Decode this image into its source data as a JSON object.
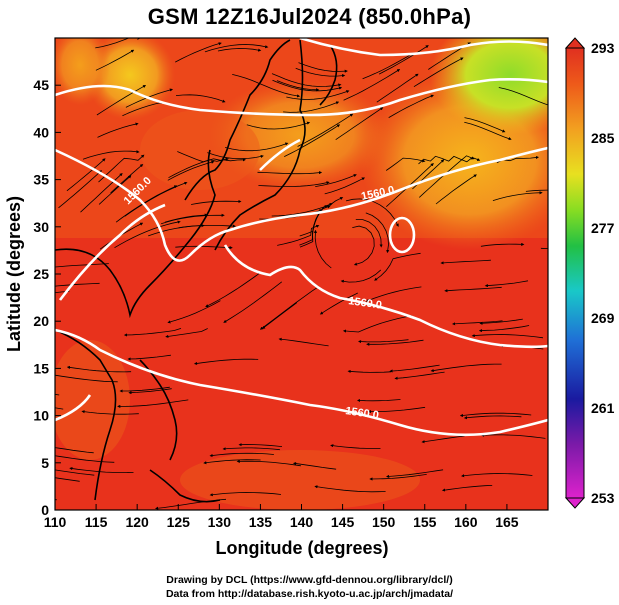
{
  "title": "GSM 12Z16Jul2024 (850.0hPa)",
  "x_axis": {
    "label": "Longitude (degrees)",
    "ticks": [
      "110",
      "115",
      "120",
      "125",
      "130",
      "135",
      "140",
      "145",
      "150",
      "155",
      "160",
      "165"
    ],
    "range": [
      110,
      170
    ]
  },
  "y_axis": {
    "label": "Latitude  (degrees)",
    "ticks": [
      "0",
      "5",
      "10",
      "15",
      "20",
      "25",
      "30",
      "35",
      "40",
      "45"
    ],
    "range": [
      0,
      50
    ]
  },
  "colorbar": {
    "ticks": [
      "253",
      "261",
      "269",
      "277",
      "285",
      "293"
    ],
    "range": [
      253,
      293
    ],
    "colors": [
      "#cc22cc",
      "#1a1aa0",
      "#1f6fd6",
      "#19c8c8",
      "#22c044",
      "#88dd22",
      "#e8e020",
      "#f2a020",
      "#ee5a1a",
      "#e03020"
    ]
  },
  "contours": {
    "field": "geopotential height",
    "labels": [
      "1560.0"
    ]
  },
  "colors": {
    "field_base": "#e8321c",
    "ocean_hot": "#ea3818",
    "warm_band": "#f07a18",
    "cool_region": "#f3b21a",
    "coldest_region": "#8edc2a",
    "coastline": "#000000",
    "contour": "#ffffff"
  },
  "credits": {
    "line1": "Drawing by DCL (https://www.gfd-dennou.org/library/dcl/)",
    "line2": "Data from http://database.rish.kyoto-u.ac.jp/arch/jmadata/"
  }
}
